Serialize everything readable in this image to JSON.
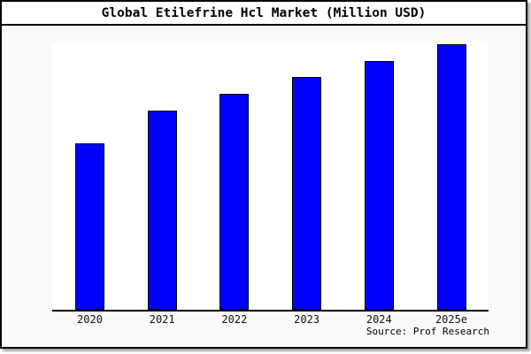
{
  "chart_data": {
    "type": "bar",
    "title": "Global Etilefrine Hcl Market (Million USD)",
    "categories": [
      "2020",
      "2021",
      "2022",
      "2023",
      "2024",
      "2025e"
    ],
    "values": [
      62.7,
      75.0,
      81.3,
      87.7,
      93.7,
      100.0
    ],
    "units": "relative index (no y-axis scale shown; estimated from bar heights, 2025e = 100)",
    "xlabel": "",
    "ylabel": "",
    "ylim": [
      0,
      100
    ],
    "grid": false,
    "legend": false,
    "bar_color": "#0000ff",
    "bar_border_color": "#000000",
    "plot_bg": "#ffffff",
    "canvas_bg": "#f9f9f9",
    "axis_color": "#000000",
    "source_note": "Source: Prof Research"
  }
}
